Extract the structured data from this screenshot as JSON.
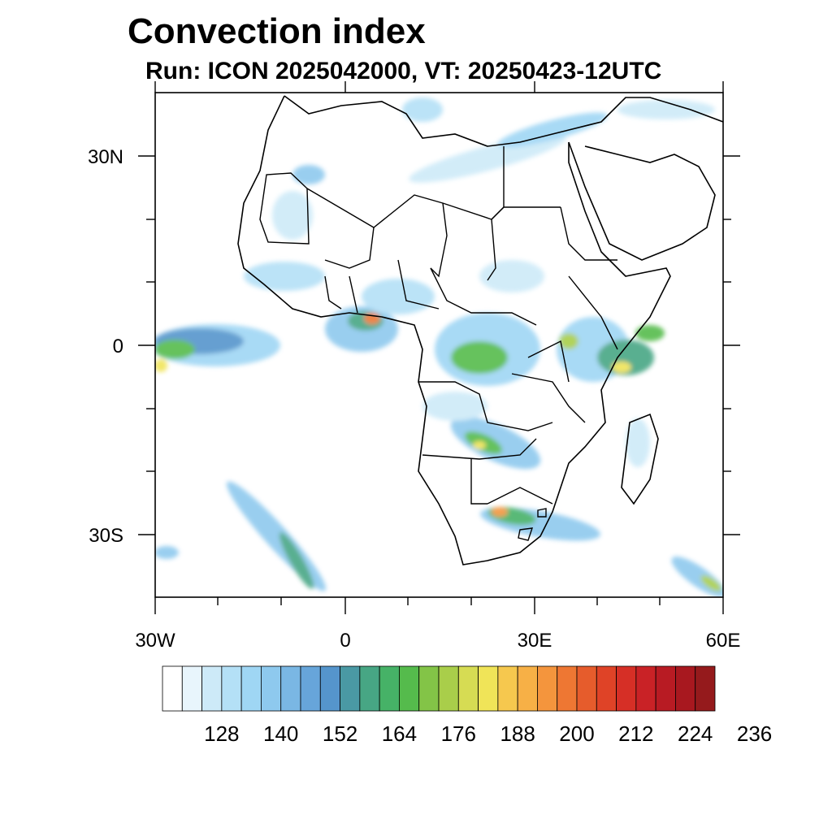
{
  "title": "Convection index",
  "subtitle": "Run: ICON 2025042000,  VT: 20250423-12UTC",
  "map": {
    "region": "Africa",
    "lon_range": [
      -30,
      60
    ],
    "lat_range": [
      -40,
      40
    ],
    "y_ticks": [
      {
        "lat": 30,
        "label": "30N"
      },
      {
        "lat": 0,
        "label": "0"
      },
      {
        "lat": -30,
        "label": "30S"
      }
    ],
    "x_ticks": [
      {
        "lon": -30,
        "label": "30W"
      },
      {
        "lon": 0,
        "label": "0"
      },
      {
        "lon": 30,
        "label": "30E"
      },
      {
        "lon": 60,
        "label": "60E"
      }
    ]
  },
  "colorbar": {
    "labels": [
      "128",
      "140",
      "152",
      "164",
      "176",
      "188",
      "200",
      "212",
      "224",
      "236"
    ],
    "colors": [
      "#ffffff",
      "#e8f5fc",
      "#cdeaf8",
      "#b4e0f6",
      "#9fd6f4",
      "#8ec9ee",
      "#7ab7e4",
      "#67a5da",
      "#5595cc",
      "#4a99a4",
      "#47a684",
      "#46b267",
      "#55bb4c",
      "#83c447",
      "#a9ce4a",
      "#d6dc53",
      "#f0e458",
      "#f6c84e",
      "#f7b046",
      "#f4953d",
      "#ee7733",
      "#e65c2c",
      "#df4327",
      "#d62f26",
      "#c92226",
      "#b81b23",
      "#a8181f",
      "#951a1c"
    ]
  }
}
